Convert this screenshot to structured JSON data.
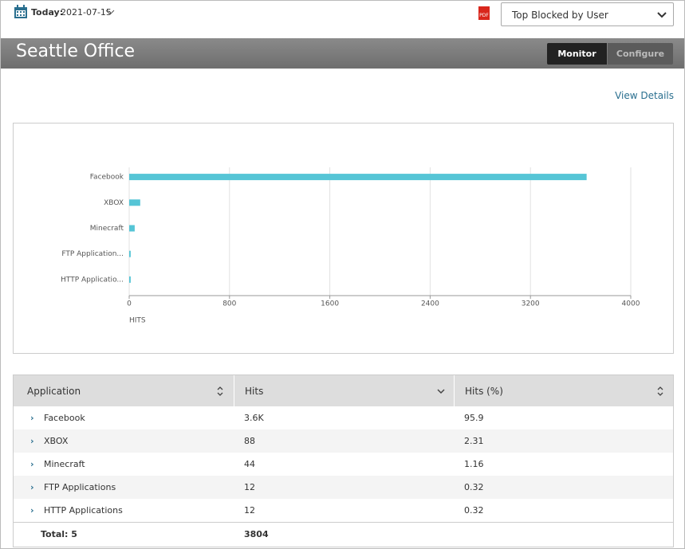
{
  "header": {
    "date_label": "Today:",
    "date": "2021-07-15",
    "pdf_icon": "PDF",
    "report": "Top Blocked by User",
    "title": "Seattle Office",
    "tabs": [
      "Monitor",
      "Configure"
    ],
    "view_details": "View Details"
  },
  "chart_data": {
    "type": "bar",
    "orientation": "horizontal",
    "categories": [
      "Facebook",
      "XBOX",
      "Minecraft",
      "FTP Application...",
      "HTTP Applicatio..."
    ],
    "values": [
      3648,
      88,
      44,
      12,
      12
    ],
    "color": "#56c5d6",
    "xlim": [
      0,
      4000
    ],
    "xticks": [
      0,
      800,
      1600,
      2400,
      3200,
      4000
    ],
    "x_label": "HITS",
    "grid": true
  },
  "table": {
    "columns": [
      "Application",
      "Hits",
      "Hits (%)"
    ],
    "rows": [
      [
        "Facebook",
        "3.6K",
        "95.9"
      ],
      [
        "XBOX",
        "88",
        "2.31"
      ],
      [
        "Minecraft",
        "44",
        "1.16"
      ],
      [
        "FTP Applications",
        "12",
        "0.32"
      ],
      [
        "HTTP Applications",
        "12",
        "0.32"
      ]
    ],
    "total": [
      "Total: 5",
      "3804"
    ]
  }
}
